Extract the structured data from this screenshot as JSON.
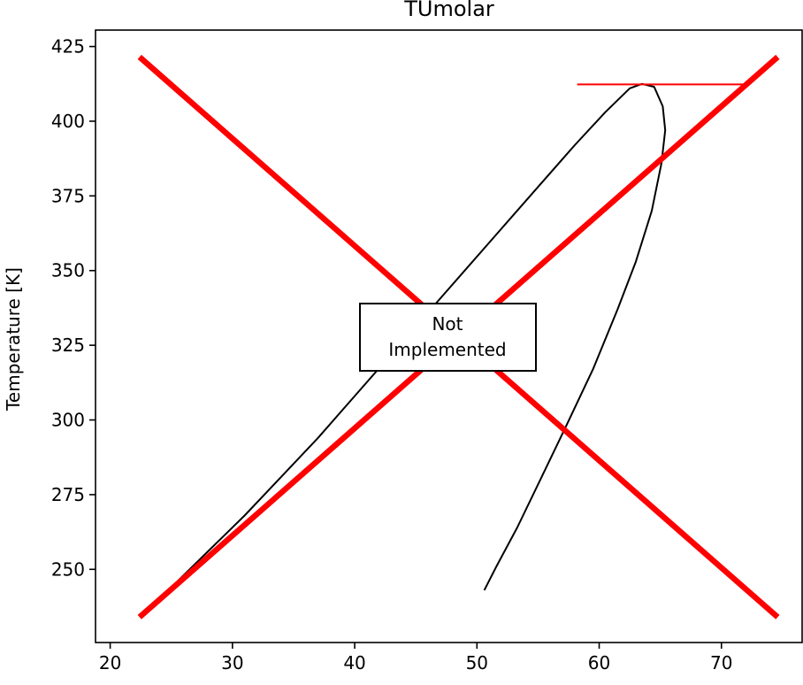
{
  "chart_data": {
    "type": "line",
    "title": "TUmolar",
    "xlabel": "",
    "ylabel": "Temperature [K]",
    "xlim": [
      18.8,
      76.6
    ],
    "ylim": [
      225.5,
      430.5
    ],
    "xticks": [
      20,
      30,
      40,
      50,
      60,
      70
    ],
    "yticks": [
      250,
      275,
      300,
      325,
      350,
      375,
      400,
      425
    ],
    "grid": false,
    "annotation": {
      "line1": "Not",
      "line2": "Implemented"
    },
    "colors": {
      "curve": "#000000",
      "cross": "#ff0000",
      "critical_line": "#ff0000"
    },
    "series": [
      {
        "values": [
          [
            25.5,
            246
          ],
          [
            28,
            256
          ],
          [
            31,
            268
          ],
          [
            34,
            281
          ],
          [
            37,
            294
          ],
          [
            40,
            308
          ],
          [
            43,
            322
          ],
          [
            46,
            336
          ],
          [
            49,
            350
          ],
          [
            52,
            364
          ],
          [
            55,
            378
          ],
          [
            58,
            392
          ],
          [
            60.5,
            403
          ],
          [
            62.5,
            411
          ],
          [
            63.5,
            412.5
          ],
          [
            64.5,
            411.5
          ],
          [
            65.2,
            405
          ],
          [
            65.4,
            397
          ],
          [
            65.1,
            386
          ],
          [
            64.3,
            370
          ],
          [
            63,
            353
          ],
          [
            61.5,
            337
          ],
          [
            59.5,
            317
          ],
          [
            57.3,
            298
          ],
          [
            55.3,
            281
          ],
          [
            53.3,
            264
          ],
          [
            51.6,
            251
          ],
          [
            50.6,
            243
          ]
        ]
      },
      {
        "values": [
          [
            58.2,
            412.3
          ],
          [
            71.8,
            412.3
          ]
        ]
      },
      {
        "values": [
          [
            22.4,
            421.5
          ],
          [
            74.6,
            234
          ]
        ]
      },
      {
        "values": [
          [
            22.4,
            234
          ],
          [
            74.6,
            421.5
          ]
        ]
      }
    ]
  }
}
